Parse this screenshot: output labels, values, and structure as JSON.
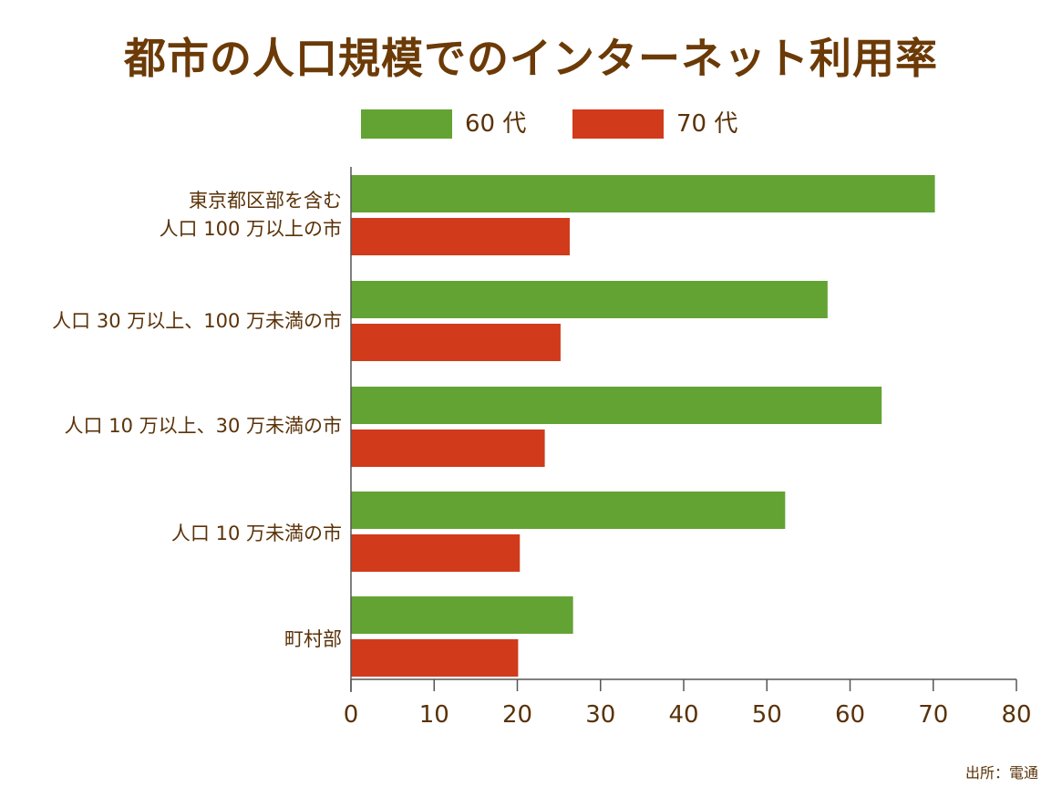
{
  "source": "出所：電通",
  "chart_data": {
    "type": "bar",
    "orientation": "horizontal",
    "title": "都市の人口規模でのインターネット利用率",
    "categories": [
      [
        "東京都区部を含む",
        "人口 100 万以上の市"
      ],
      [
        "人口 30 万以上、100 万未満の市"
      ],
      [
        "人口 10 万以上、30 万未満の市"
      ],
      [
        "人口 10 万未満の市"
      ],
      [
        "町村部"
      ]
    ],
    "series": [
      {
        "name": "60 代",
        "color": "#63a333",
        "values": [
          70.2,
          57.3,
          63.8,
          52.2,
          26.7
        ]
      },
      {
        "name": "70 代",
        "color": "#d13a1b",
        "values": [
          26.3,
          25.2,
          23.3,
          20.3,
          20.1
        ]
      }
    ],
    "xlim": [
      0,
      80
    ],
    "xticks": [
      0,
      10,
      20,
      30,
      40,
      50,
      60,
      70,
      80
    ],
    "grid": false,
    "legend_position": "top"
  }
}
